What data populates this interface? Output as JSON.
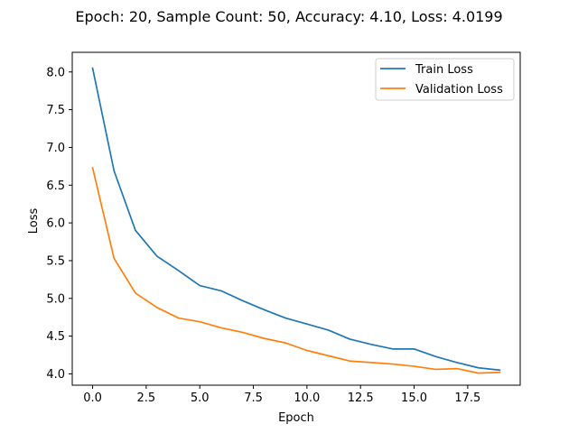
{
  "chart_data": {
    "type": "line",
    "title": "Epoch: 20, Sample Count: 50, Accuracy: 4.10, Loss: 4.0199",
    "xlabel": "Epoch",
    "ylabel": "Loss",
    "xlim": [
      -0.95,
      19.95
    ],
    "ylim": [
      3.85,
      8.26
    ],
    "xticks": [
      0,
      2.5,
      5,
      7.5,
      10,
      12.5,
      15,
      17.5
    ],
    "xtick_labels": [
      "0.0",
      "2.5",
      "5.0",
      "7.5",
      "10.0",
      "12.5",
      "15.0",
      "17.5"
    ],
    "yticks": [
      4.0,
      4.5,
      5.0,
      5.5,
      6.0,
      6.5,
      7.0,
      7.5,
      8.0
    ],
    "ytick_labels": [
      "4.0",
      "4.5",
      "5.0",
      "5.5",
      "6.0",
      "6.5",
      "7.0",
      "7.5",
      "8.0"
    ],
    "grid": false,
    "legend_position": "top-right",
    "x": [
      0,
      1,
      2,
      3,
      4,
      5,
      6,
      7,
      8,
      9,
      10,
      11,
      12,
      13,
      14,
      15,
      16,
      17,
      18,
      19
    ],
    "series": [
      {
        "name": "Train Loss",
        "color": "#1f77b4",
        "values": [
          8.05,
          6.69,
          5.9,
          5.56,
          5.37,
          5.17,
          5.1,
          4.97,
          4.85,
          4.74,
          4.66,
          4.58,
          4.46,
          4.39,
          4.33,
          4.33,
          4.23,
          4.15,
          4.08,
          4.05
        ]
      },
      {
        "name": "Validation Loss",
        "color": "#ff7f0e",
        "values": [
          6.73,
          5.53,
          5.07,
          4.88,
          4.74,
          4.69,
          4.61,
          4.55,
          4.47,
          4.41,
          4.31,
          4.24,
          4.17,
          4.15,
          4.13,
          4.1,
          4.06,
          4.07,
          4.01,
          4.02
        ]
      }
    ]
  }
}
